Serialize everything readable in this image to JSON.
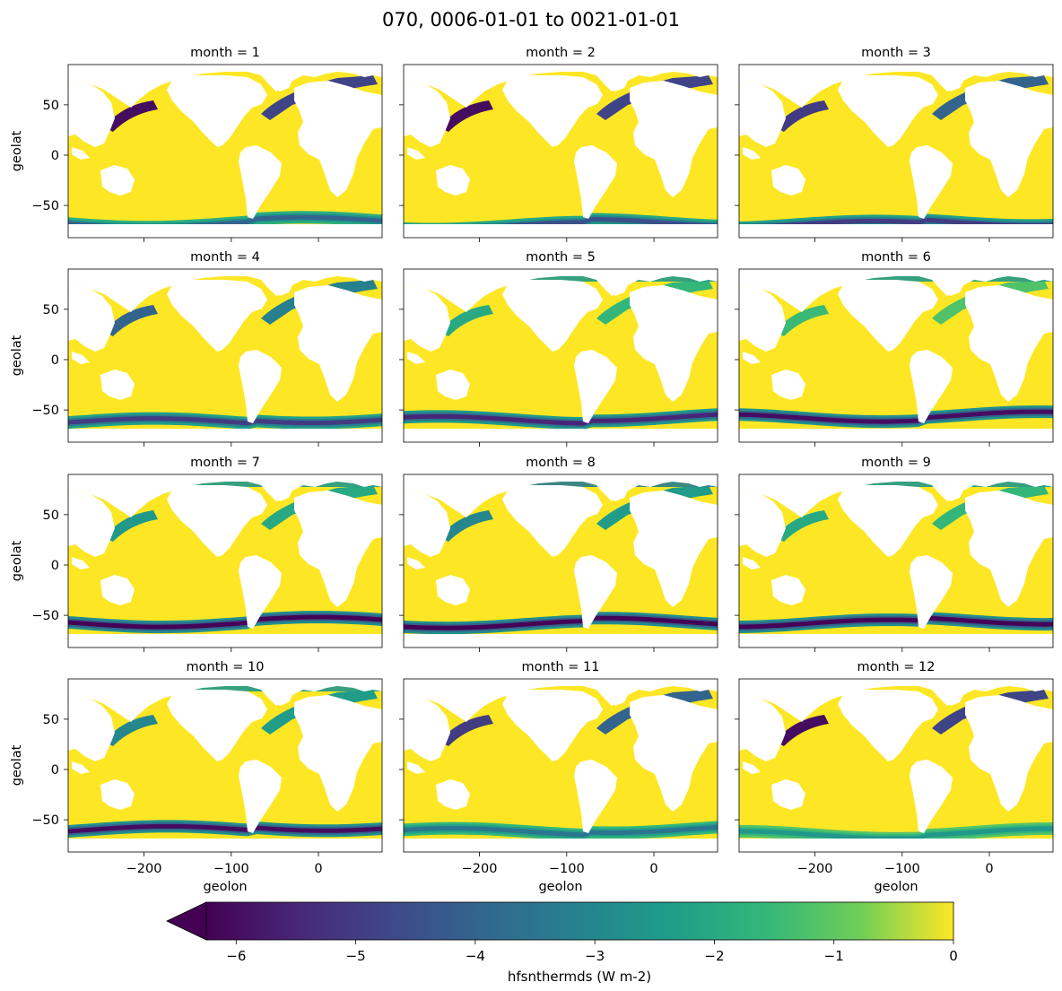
{
  "chart_data": {
    "type": "heatmap",
    "title": "070, 0006-01-01 to 0021-01-01",
    "variable": "hfsnthermds",
    "units": "W m-2",
    "panels": [
      {
        "title": "month = 1",
        "month": 1
      },
      {
        "title": "month = 2",
        "month": 2
      },
      {
        "title": "month = 3",
        "month": 3
      },
      {
        "title": "month = 4",
        "month": 4
      },
      {
        "title": "month = 5",
        "month": 5
      },
      {
        "title": "month = 6",
        "month": 6
      },
      {
        "title": "month = 7",
        "month": 7
      },
      {
        "title": "month = 8",
        "month": 8
      },
      {
        "title": "month = 9",
        "month": 9
      },
      {
        "title": "month = 10",
        "month": 10
      },
      {
        "title": "month = 11",
        "month": 11
      },
      {
        "title": "month = 12",
        "month": 12
      }
    ],
    "xlabel": "geolon",
    "ylabel": "geolat",
    "xlim": [
      -287,
      73
    ],
    "ylim": [
      -82,
      90
    ],
    "xticks": [
      -200,
      -100,
      0
    ],
    "xtick_labels": [
      "−200",
      "−100",
      "0"
    ],
    "yticks": [
      -50,
      0,
      50
    ],
    "ytick_labels": [
      "−50",
      "0",
      "50"
    ],
    "colorbar": {
      "label": "hfsnthermds (W m-2)",
      "vmin": -6.25,
      "vmax": 0,
      "extend": "min",
      "colormap": "viridis",
      "ticks": [
        -6,
        -5,
        -4,
        -3,
        -2,
        -1,
        0
      ],
      "tick_labels": [
        "−6",
        "−5",
        "−4",
        "−3",
        "−2",
        "−1",
        "0"
      ]
    },
    "southern_band": {
      "description_values_by_month": [
        -4,
        -4.5,
        -5,
        -5,
        -5.5,
        -6,
        -6.2,
        -6.2,
        -6.2,
        -6,
        -3.5,
        -2.5
      ],
      "center_lat_by_month": [
        -68,
        -70,
        -69,
        -62,
        -60,
        -58,
        -58,
        -59,
        -58,
        -60,
        -62,
        -65
      ]
    },
    "northern_band": {
      "description_values_by_month": [
        -6,
        -6,
        -5,
        -4,
        -2,
        -1.5,
        -2.5,
        -3,
        -2,
        -3,
        -5,
        -6
      ]
    }
  },
  "colors": {
    "viridis_max": "#fde725",
    "viridis_min": "#440154",
    "land": "#ffffff"
  }
}
